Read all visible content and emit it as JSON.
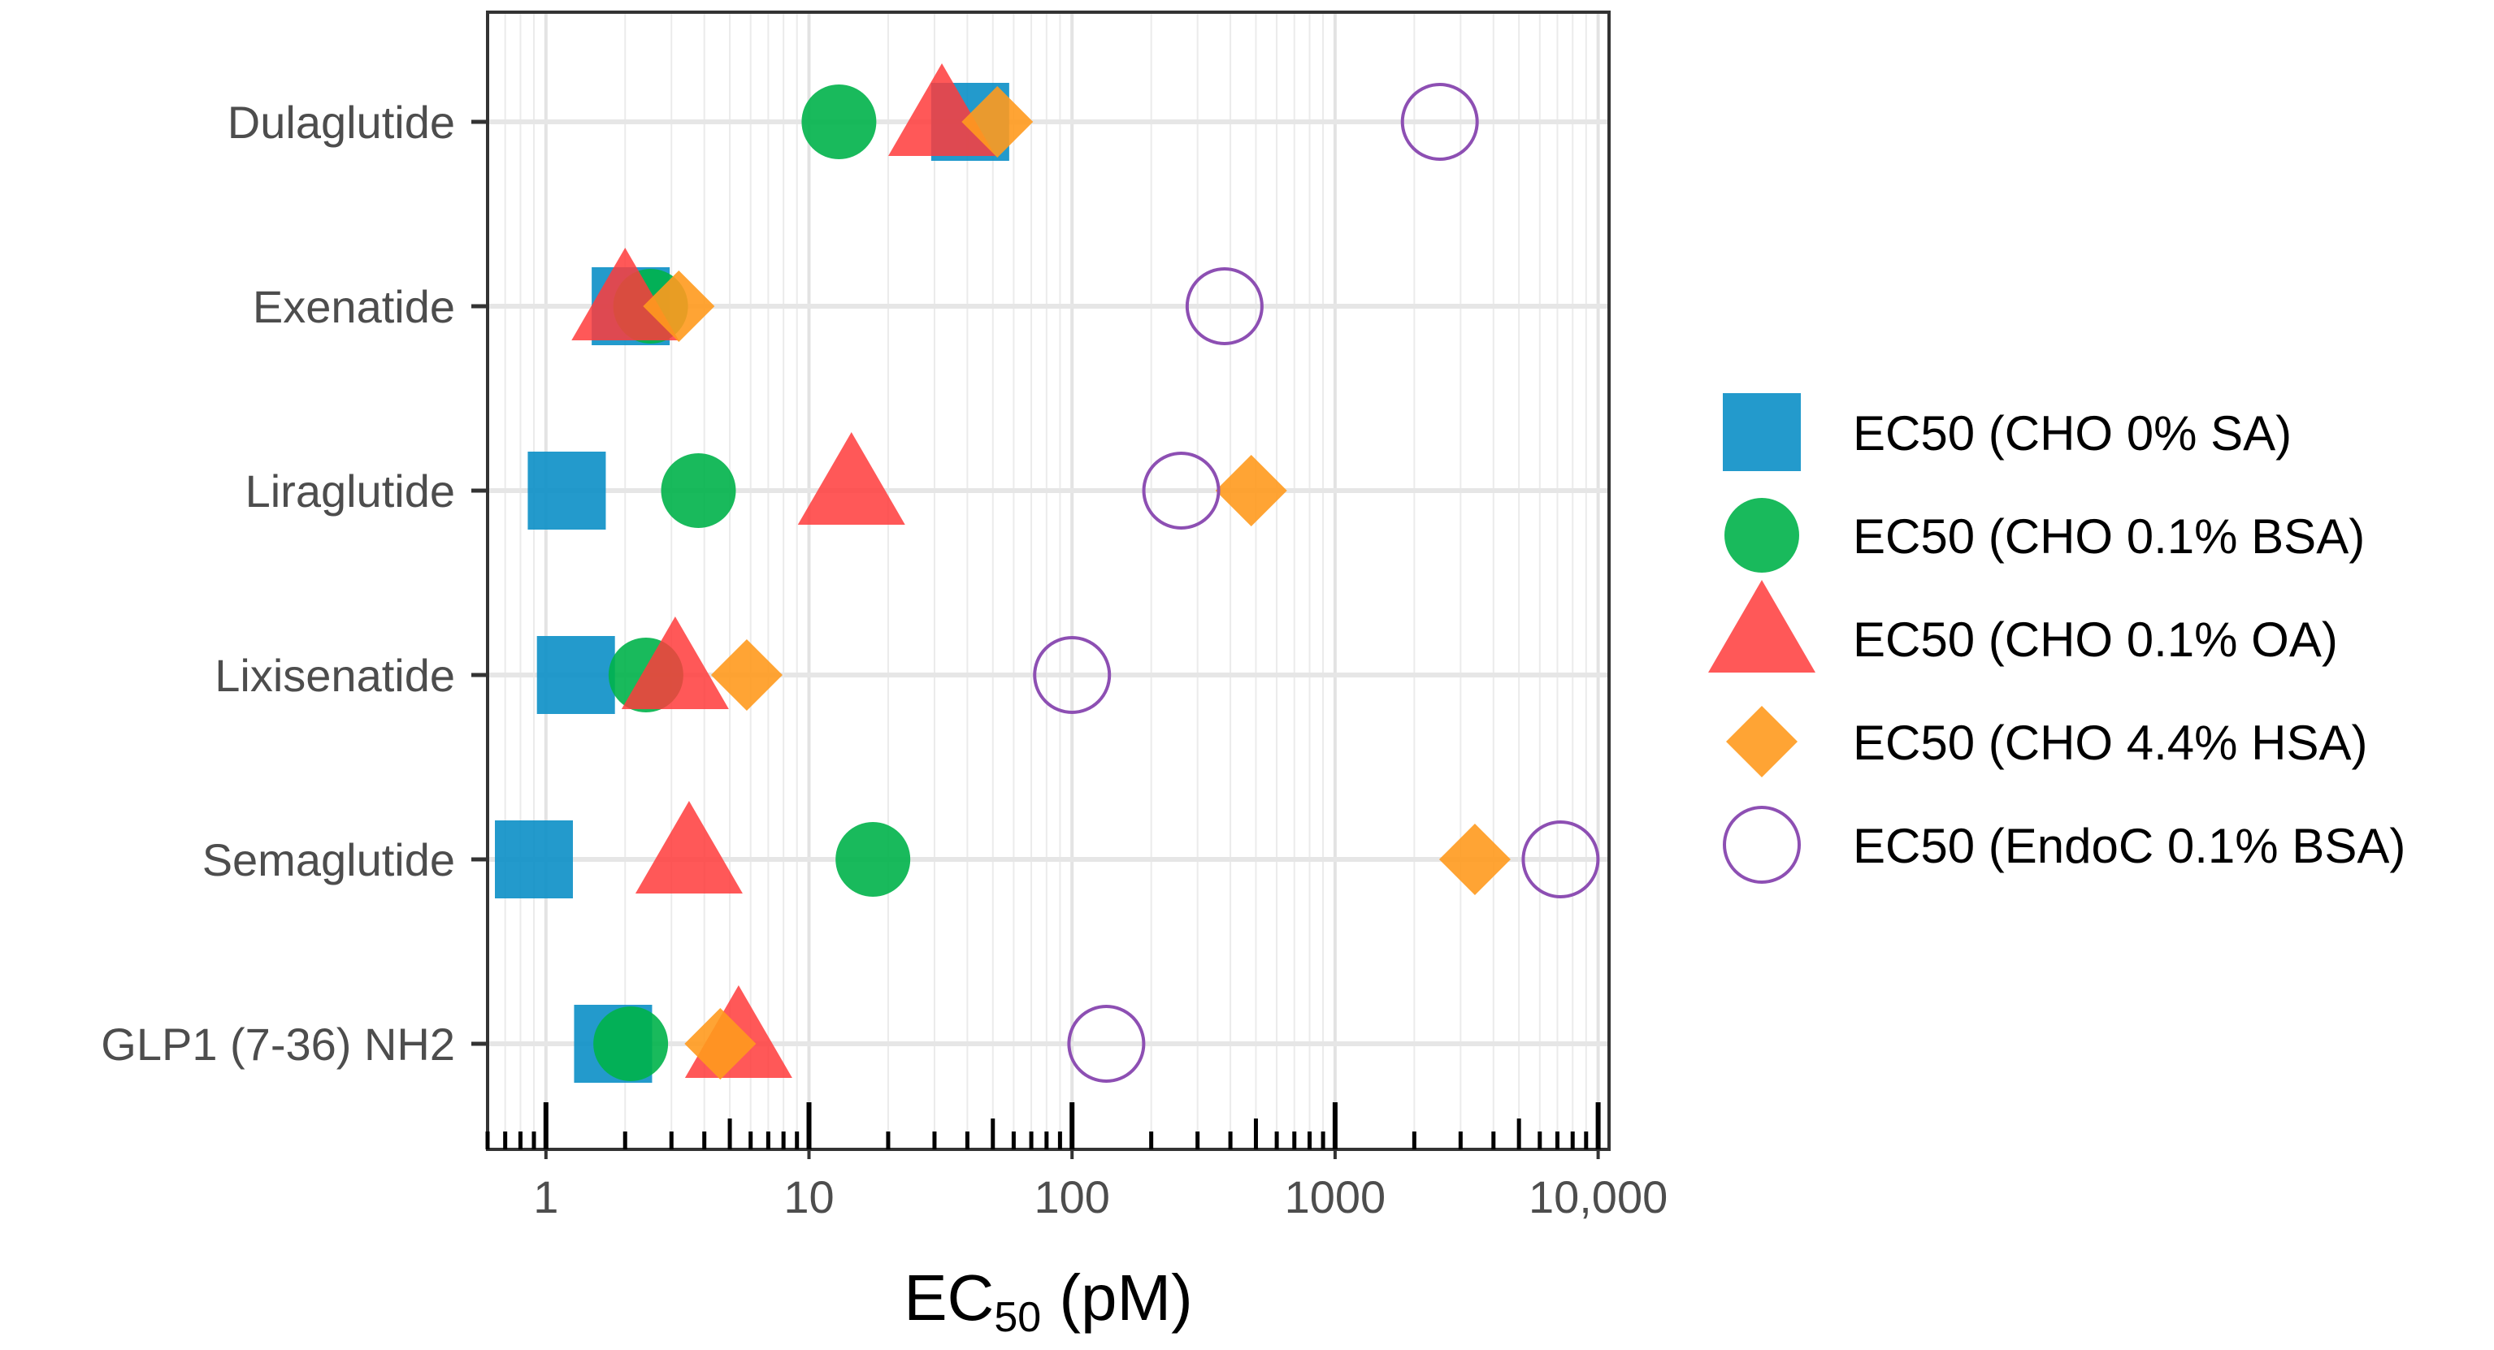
{
  "chart_data": {
    "type": "scatter",
    "orientation": "horizontal",
    "x_scale": "log10",
    "xlim": [
      0.6,
      11000
    ],
    "xlabel_main": "EC",
    "xlabel_sub": "50",
    "xlabel_unit": " (pM)",
    "categories": [
      "Dulaglutide",
      "Exenatide",
      "Liraglutide",
      "Lixisenatide",
      "Semaglutide",
      "GLP1 (7-36) NH2"
    ],
    "x_ticks": [
      {
        "value": 1,
        "label": "1"
      },
      {
        "value": 10,
        "label": "10"
      },
      {
        "value": 100,
        "label": "100"
      },
      {
        "value": 1000,
        "label": "1000"
      },
      {
        "value": 10000,
        "label": "10,000"
      }
    ],
    "grid": true,
    "legend_position": "right",
    "series": [
      {
        "name": "EC50 (CHO 0% SA)",
        "shape": "square",
        "color": "#0B8FC6",
        "filled": true,
        "values": [
          41,
          2.1,
          1.2,
          1.3,
          0.9,
          1.8
        ]
      },
      {
        "name": "EC50 (CHO 0.1% BSA)",
        "shape": "circle",
        "color": "#00B24A",
        "filled": true,
        "values": [
          13,
          2.5,
          3.8,
          2.4,
          17.5,
          2.1
        ]
      },
      {
        "name": "EC50 (CHO 0.1% OA)",
        "shape": "triangle",
        "color": "#FF3B3B",
        "filled": true,
        "values": [
          32,
          2.0,
          14.5,
          3.1,
          3.5,
          5.4
        ]
      },
      {
        "name": "EC50 (CHO 4.4% HSA)",
        "shape": "diamond",
        "color": "#FF9A1E",
        "filled": true,
        "values": [
          52,
          3.2,
          480,
          5.8,
          3400,
          4.6
        ]
      },
      {
        "name": "EC50 (EndoC 0.1% BSA)",
        "shape": "circle",
        "color": "#8D4FB3",
        "filled": false,
        "values": [
          2500,
          380,
          260,
          100,
          7200,
          135
        ]
      }
    ]
  }
}
